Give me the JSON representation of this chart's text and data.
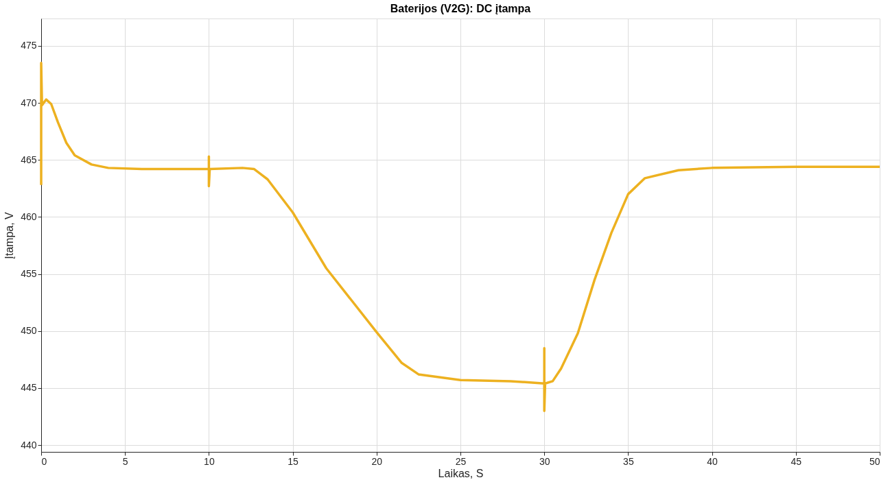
{
  "chart_data": {
    "type": "line",
    "title": "Baterijos (V2G): DC įtampa",
    "xlabel": "Laikas, S",
    "ylabel": "Įtampa, V",
    "x": [
      0,
      0,
      0.05,
      0.3,
      0.6,
      1,
      1.5,
      2,
      3,
      4,
      6,
      8,
      10,
      10,
      10,
      10.05,
      12,
      12.7,
      13.5,
      15,
      17,
      20,
      21.5,
      22.5,
      25,
      28,
      30,
      30,
      30,
      30.05,
      30.5,
      31,
      32,
      33,
      34,
      35,
      36,
      38,
      40,
      45,
      50
    ],
    "series": [
      {
        "color": "#edb120",
        "values": [
          462.8,
          473.5,
          469.8,
          470.3,
          469.9,
          468.3,
          466.5,
          465.4,
          464.6,
          464.3,
          464.2,
          464.2,
          464.2,
          465.3,
          462.7,
          464.2,
          464.3,
          464.2,
          463.3,
          460.4,
          455.5,
          449.9,
          447.2,
          446.2,
          445.7,
          445.6,
          445.4,
          448.5,
          443.0,
          445.4,
          445.6,
          446.7,
          449.8,
          454.5,
          458.6,
          462.0,
          463.4,
          464.1,
          464.3,
          464.4,
          464.4
        ]
      }
    ],
    "xlim": [
      0,
      50
    ],
    "xticks": [
      0,
      5,
      10,
      15,
      20,
      25,
      30,
      35,
      40,
      45,
      50
    ],
    "ylim": [
      439.4,
      477.4
    ],
    "yticks": [
      440,
      445,
      450,
      455,
      460,
      465,
      470,
      475
    ],
    "grid": true
  }
}
